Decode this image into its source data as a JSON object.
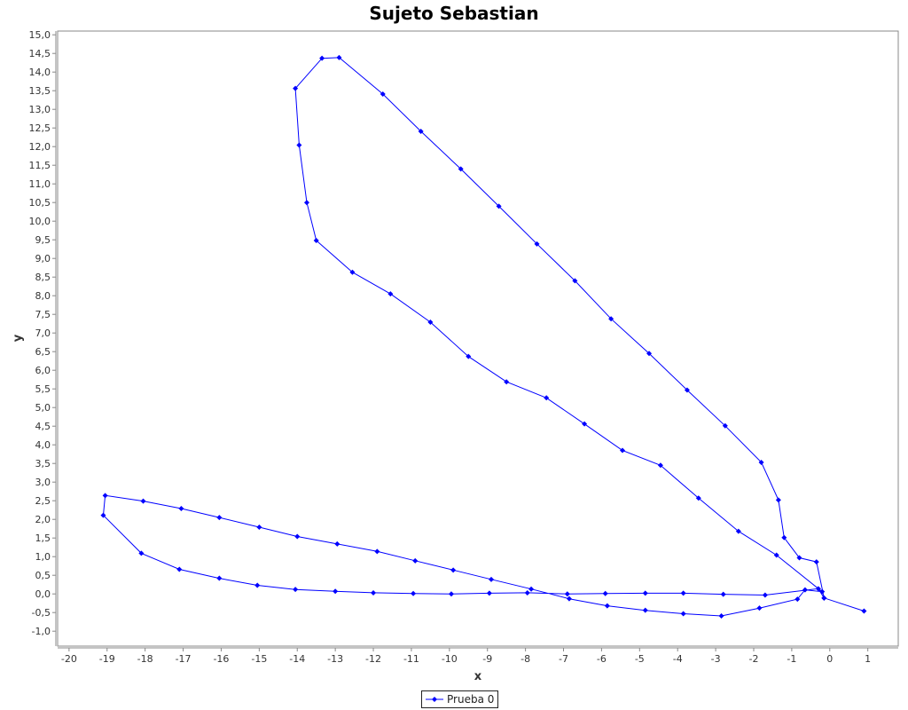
{
  "chart_data": {
    "type": "line",
    "title": "Sujeto Sebastian",
    "xlabel": "x",
    "ylabel": "y",
    "xlim": [
      -20.3,
      1.8
    ],
    "ylim": [
      -1.4,
      15.1
    ],
    "x_ticks": [
      -20,
      -19,
      -18,
      -17,
      -16,
      -15,
      -14,
      -13,
      -12,
      -11,
      -10,
      -9,
      -8,
      -7,
      -6,
      -5,
      -4,
      -3,
      -2,
      -1,
      0,
      1
    ],
    "x_tick_labels": [
      "-20",
      "-19",
      "-18",
      "-17",
      "-16",
      "-15",
      "-14",
      "-13",
      "-12",
      "-11",
      "-10",
      "-9",
      "-8",
      "-7",
      "-6",
      "-5",
      "-4",
      "-3",
      "-2",
      "-1",
      "0",
      "1"
    ],
    "y_ticks": [
      -1.0,
      -0.5,
      0.0,
      0.5,
      1.0,
      1.5,
      2.0,
      2.5,
      3.0,
      3.5,
      4.0,
      4.5,
      5.0,
      5.5,
      6.0,
      6.5,
      7.0,
      7.5,
      8.0,
      8.5,
      9.0,
      9.5,
      10.0,
      10.5,
      11.0,
      11.5,
      12.0,
      12.5,
      13.0,
      13.5,
      14.0,
      14.5,
      15.0
    ],
    "y_tick_labels": [
      "-1,0",
      "-0,5",
      "0,0",
      "0,5",
      "1,0",
      "1,5",
      "2,0",
      "2,5",
      "3,0",
      "3,5",
      "4,0",
      "4,5",
      "5,0",
      "5,5",
      "6,0",
      "6,5",
      "7,0",
      "7,5",
      "8,0",
      "8,5",
      "9,0",
      "9,5",
      "10,0",
      "10,5",
      "11,0",
      "11,5",
      "12,0",
      "12,5",
      "13,0",
      "13,5",
      "14,0",
      "14,5",
      "15,0"
    ],
    "grid": false,
    "legend_position": "bottom-center",
    "series": [
      {
        "name": "Prueba 0",
        "color": "#0000ff",
        "marker": "diamond",
        "points": [
          [
            0.9,
            -0.46
          ],
          [
            -0.15,
            -0.11
          ],
          [
            -0.35,
            0.86
          ],
          [
            -0.8,
            0.97
          ],
          [
            -1.2,
            1.51
          ],
          [
            -1.35,
            2.52
          ],
          [
            -1.8,
            3.53
          ],
          [
            -2.75,
            4.51
          ],
          [
            -3.75,
            5.47
          ],
          [
            -4.75,
            6.45
          ],
          [
            -5.75,
            7.38
          ],
          [
            -6.7,
            8.4
          ],
          [
            -7.7,
            9.39
          ],
          [
            -8.7,
            10.4
          ],
          [
            -9.7,
            11.4
          ],
          [
            -10.75,
            12.41
          ],
          [
            -11.75,
            13.41
          ],
          [
            -12.9,
            14.39
          ],
          [
            -13.35,
            14.37
          ],
          [
            -14.05,
            13.56
          ],
          [
            -13.95,
            12.04
          ],
          [
            -13.75,
            10.5
          ],
          [
            -13.5,
            9.48
          ],
          [
            -12.55,
            8.63
          ],
          [
            -11.55,
            8.05
          ],
          [
            -10.5,
            7.29
          ],
          [
            -9.5,
            6.37
          ],
          [
            -8.5,
            5.69
          ],
          [
            -7.45,
            5.26
          ],
          [
            -6.45,
            4.56
          ],
          [
            -5.45,
            3.85
          ],
          [
            -4.45,
            3.45
          ],
          [
            -3.45,
            2.57
          ],
          [
            -2.4,
            1.68
          ],
          [
            -1.4,
            1.04
          ],
          [
            -0.2,
            0.06
          ],
          [
            -0.65,
            0.11
          ],
          [
            -0.85,
            -0.14
          ],
          [
            -1.85,
            -0.38
          ],
          [
            -2.85,
            -0.59
          ],
          [
            -3.85,
            -0.53
          ],
          [
            -4.85,
            -0.44
          ],
          [
            -5.85,
            -0.32
          ],
          [
            -6.85,
            -0.13
          ],
          [
            -7.85,
            0.13
          ],
          [
            -8.9,
            0.39
          ],
          [
            -9.9,
            0.64
          ],
          [
            -10.9,
            0.89
          ],
          [
            -11.9,
            1.14
          ],
          [
            -12.95,
            1.34
          ],
          [
            -14.0,
            1.54
          ],
          [
            -15.0,
            1.79
          ],
          [
            -16.05,
            2.05
          ],
          [
            -17.05,
            2.29
          ],
          [
            -18.05,
            2.49
          ],
          [
            -19.05,
            2.64
          ],
          [
            -19.1,
            2.11
          ],
          [
            -18.1,
            1.09
          ],
          [
            -17.1,
            0.66
          ],
          [
            -16.05,
            0.42
          ],
          [
            -15.05,
            0.23
          ],
          [
            -14.05,
            0.12
          ],
          [
            -13.0,
            0.07
          ],
          [
            -12.0,
            0.03
          ],
          [
            -10.95,
            0.01
          ],
          [
            -9.95,
            0.0
          ],
          [
            -8.95,
            0.02
          ],
          [
            -7.95,
            0.03
          ],
          [
            -6.9,
            0.0
          ],
          [
            -5.9,
            0.01
          ],
          [
            -4.85,
            0.02
          ],
          [
            -3.85,
            0.02
          ],
          [
            -2.8,
            -0.01
          ],
          [
            -1.7,
            -0.03
          ],
          [
            -0.3,
            0.14
          ],
          [
            -0.15,
            -0.11
          ]
        ]
      }
    ]
  }
}
